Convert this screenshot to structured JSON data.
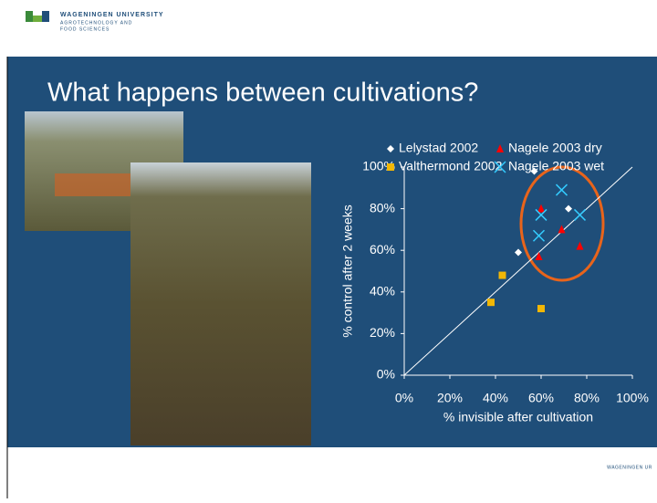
{
  "header": {
    "logo_line1": "WAGENINGEN UNIVERSITY",
    "logo_line2": "AGROTECHNOLOGY AND",
    "logo_line3": "FOOD SCIENCES"
  },
  "slide": {
    "title": "What happens between cultivations?",
    "footer_logo": "WAGENINGEN UR"
  },
  "chart_data": {
    "type": "scatter",
    "x_label": "% invisible after cultivation",
    "y_label": "% control after 2 weeks",
    "xlim": [
      0,
      100
    ],
    "ylim": [
      0,
      100
    ],
    "xticks": [
      {
        "value": 0,
        "label": "0%"
      },
      {
        "value": 20,
        "label": "20%"
      },
      {
        "value": 40,
        "label": "40%"
      },
      {
        "value": 60,
        "label": "60%"
      },
      {
        "value": 80,
        "label": "80%"
      },
      {
        "value": 100,
        "label": "100%"
      }
    ],
    "yticks": [
      {
        "value": 0,
        "label": "0%"
      },
      {
        "value": 20,
        "label": "20%"
      },
      {
        "value": 40,
        "label": "40%"
      },
      {
        "value": 60,
        "label": "60%"
      },
      {
        "value": 80,
        "label": "80%"
      },
      {
        "value": 100,
        "label": "100%"
      }
    ],
    "diagonal": true,
    "series": [
      {
        "name": "Lelystad 2002",
        "color": "#ffffff",
        "marker": "diamond",
        "x": [
          57,
          50,
          72
        ],
        "values": [
          98,
          59,
          80
        ]
      },
      {
        "name": "Valthermond 2002",
        "color": "#f2b705",
        "marker": "square",
        "x": [
          38,
          43,
          60
        ],
        "values": [
          35,
          48,
          32
        ]
      },
      {
        "name": "Nagele 2003 dry",
        "color": "#ff0000",
        "marker": "triangle",
        "x": [
          60,
          69,
          59,
          77
        ],
        "values": [
          80,
          70,
          57,
          62
        ]
      },
      {
        "name": "Nagele 2003 wet",
        "color": "#33ccff",
        "marker": "x",
        "x": [
          69,
          60,
          59,
          77
        ],
        "values": [
          89,
          77,
          67,
          77
        ]
      }
    ]
  }
}
